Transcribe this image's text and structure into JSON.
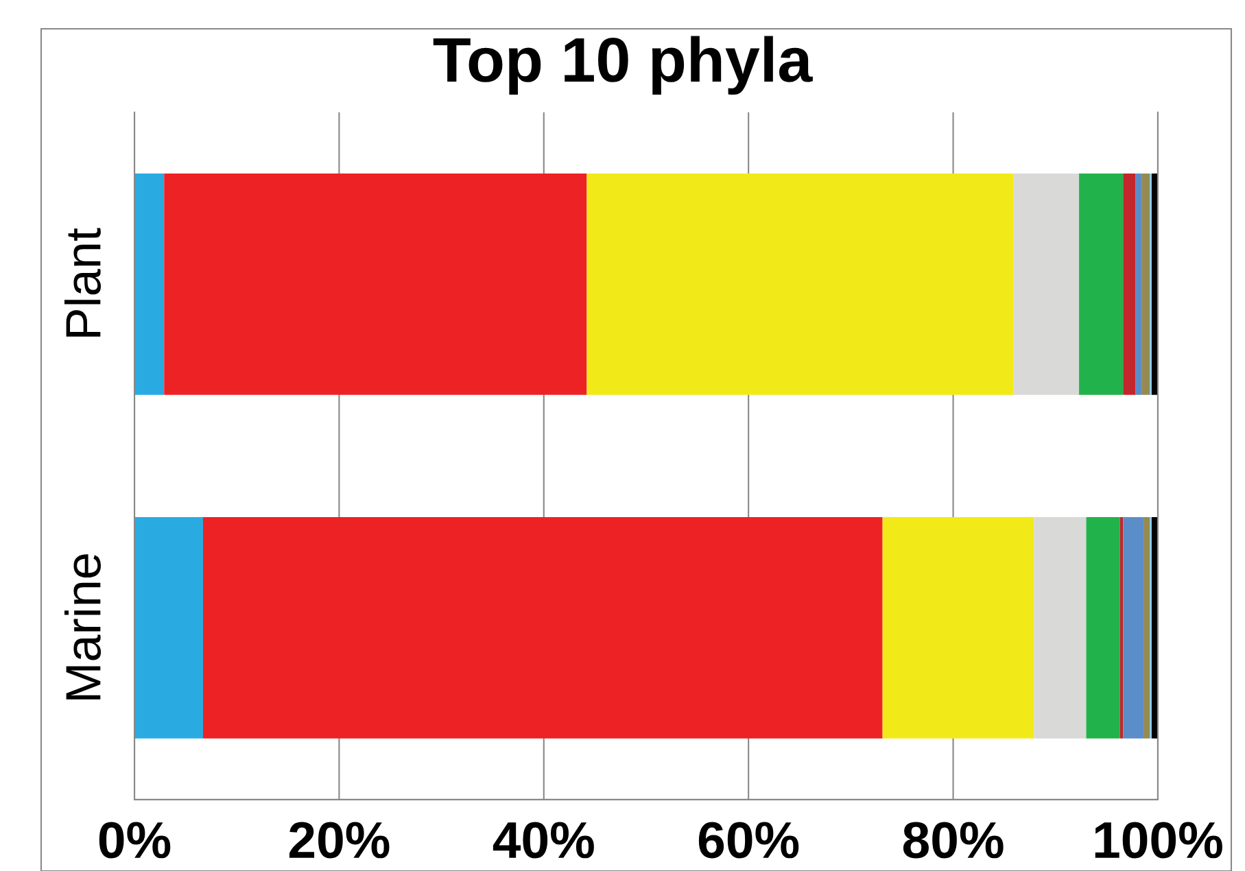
{
  "chart_data": {
    "type": "bar",
    "orientation": "horizontal",
    "stacked": true,
    "title": "Top 10 phyla",
    "categories": [
      "Plant",
      "Marine"
    ],
    "series": [
      {
        "color": "#29abe2",
        "values": [
          2.9,
          6.7
        ]
      },
      {
        "color": "#ed2224",
        "values": [
          41.3,
          66.4
        ]
      },
      {
        "color": "#f2e918",
        "values": [
          41.7,
          14.8
        ]
      },
      {
        "color": "#d9d9d7",
        "values": [
          6.4,
          5.1
        ]
      },
      {
        "color": "#21b24b",
        "values": [
          4.3,
          3.3
        ]
      },
      {
        "color": "#c1272d",
        "values": [
          1.2,
          0.3
        ]
      },
      {
        "color": "#5b8ec8",
        "values": [
          0.6,
          2.0
        ]
      },
      {
        "color": "#968a53",
        "values": [
          0.8,
          0.6
        ]
      },
      {
        "color": "#8ccbe6",
        "values": [
          0.2,
          0.2
        ]
      },
      {
        "color": "#050505",
        "values": [
          0.6,
          0.6
        ]
      }
    ],
    "xlim": [
      0,
      100
    ],
    "xticks": [
      {
        "value": 0,
        "label": "0%"
      },
      {
        "value": 20,
        "label": "20%"
      },
      {
        "value": 40,
        "label": "40%"
      },
      {
        "value": 60,
        "label": "60%"
      },
      {
        "value": 80,
        "label": "80%"
      },
      {
        "value": 100,
        "label": "100%"
      }
    ],
    "grid": "x",
    "legend": false
  }
}
